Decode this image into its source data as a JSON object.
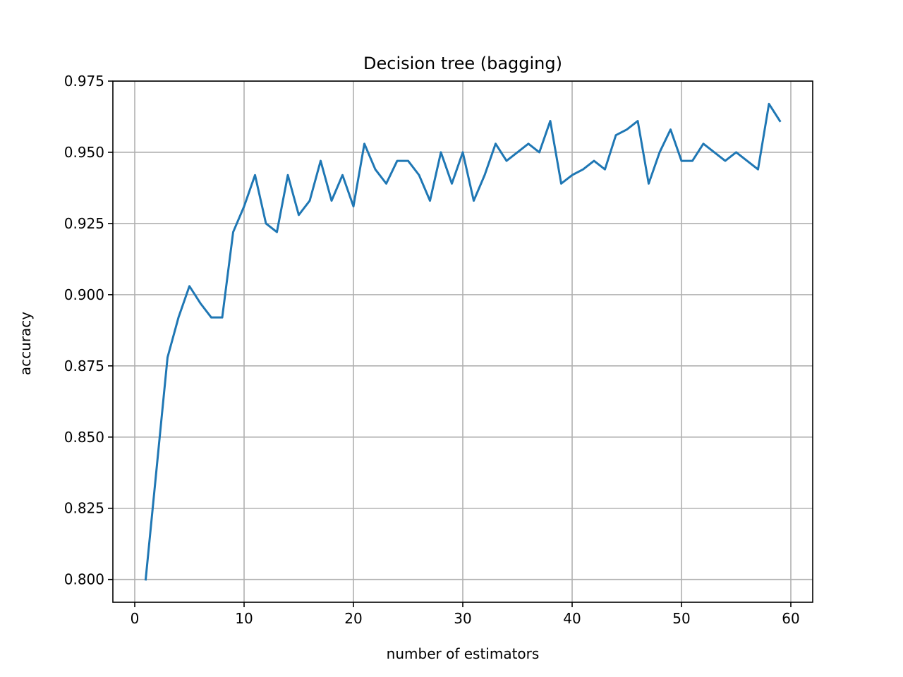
{
  "chart_data": {
    "type": "line",
    "title": "Decision tree (bagging)",
    "xlabel": "number of estimators",
    "ylabel": "accuracy",
    "xlim": [
      -2,
      62
    ],
    "ylim": [
      0.792,
      0.975
    ],
    "xticks": [
      0,
      10,
      20,
      30,
      40,
      50,
      60
    ],
    "yticks": [
      0.8,
      0.825,
      0.85,
      0.875,
      0.9,
      0.925,
      0.95,
      0.975
    ],
    "xtick_labels": [
      "0",
      "10",
      "20",
      "30",
      "40",
      "50",
      "60"
    ],
    "ytick_labels": [
      "0.800",
      "0.825",
      "0.850",
      "0.875",
      "0.900",
      "0.925",
      "0.950",
      "0.975"
    ],
    "grid": true,
    "color": "#1f77b4",
    "series": [
      {
        "x": [
          1,
          2,
          3,
          4,
          5,
          6,
          7,
          8,
          9,
          10,
          11,
          12,
          13,
          14,
          15,
          16,
          17,
          18,
          19,
          20,
          21,
          22,
          23,
          24,
          25,
          26,
          27,
          28,
          29,
          30,
          31,
          32,
          33,
          34,
          35,
          36,
          37,
          38,
          39,
          40,
          41,
          42,
          43,
          44,
          45,
          46,
          47,
          48,
          49,
          50,
          51,
          52,
          53,
          54,
          55,
          56,
          57,
          58,
          59
        ],
        "values": [
          0.8,
          0.839,
          0.878,
          0.892,
          0.903,
          0.897,
          0.892,
          0.892,
          0.922,
          0.931,
          0.942,
          0.925,
          0.922,
          0.942,
          0.928,
          0.933,
          0.947,
          0.933,
          0.942,
          0.931,
          0.953,
          0.944,
          0.939,
          0.947,
          0.947,
          0.942,
          0.933,
          0.95,
          0.939,
          0.95,
          0.933,
          0.942,
          0.953,
          0.947,
          0.95,
          0.953,
          0.95,
          0.961,
          0.939,
          0.942,
          0.944,
          0.947,
          0.944,
          0.956,
          0.958,
          0.961,
          0.939,
          0.95,
          0.958,
          0.947,
          0.947,
          0.953,
          0.95,
          0.947,
          0.95,
          0.947,
          0.944,
          0.967,
          0.961
        ]
      }
    ]
  }
}
